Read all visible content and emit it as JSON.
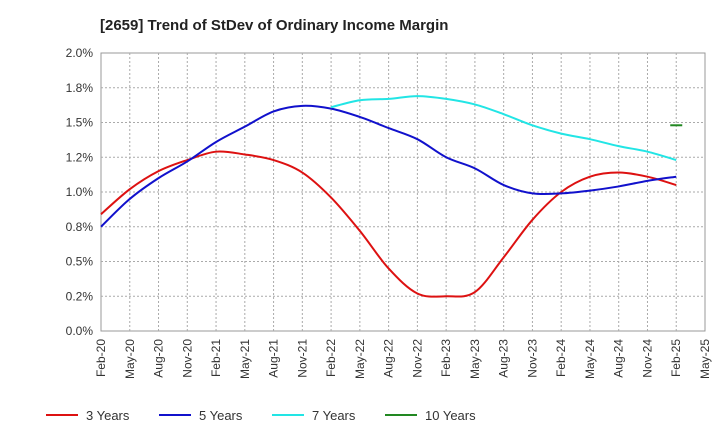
{
  "chart_data": {
    "type": "line",
    "title": "[2659]  Trend of StDev of Ordinary Income Margin",
    "xlabel": "",
    "ylabel": "",
    "ylim": [
      0,
      2.0
    ],
    "y_ticks": [
      {
        "value": 0.0,
        "label": "0.0%"
      },
      {
        "value": 0.25,
        "label": "0.2%"
      },
      {
        "value": 0.5,
        "label": "0.5%"
      },
      {
        "value": 0.75,
        "label": "0.8%"
      },
      {
        "value": 1.0,
        "label": "1.0%"
      },
      {
        "value": 1.25,
        "label": "1.2%"
      },
      {
        "value": 1.5,
        "label": "1.5%"
      },
      {
        "value": 1.75,
        "label": "1.8%"
      },
      {
        "value": 2.0,
        "label": "2.0%"
      }
    ],
    "x_ticks": [
      "Feb-20",
      "May-20",
      "Aug-20",
      "Nov-20",
      "Feb-21",
      "May-21",
      "Aug-21",
      "Nov-21",
      "Feb-22",
      "May-22",
      "Aug-22",
      "Nov-22",
      "Feb-23",
      "May-23",
      "Aug-23",
      "Nov-23",
      "Feb-24",
      "May-24",
      "Aug-24",
      "Nov-24",
      "Feb-25",
      "May-25"
    ],
    "grid": true,
    "legend_position": "bottom",
    "series": [
      {
        "name": "3 Years",
        "color": "#dd1111",
        "values": [
          0.84,
          1.02,
          1.15,
          1.23,
          1.29,
          1.27,
          1.23,
          1.14,
          0.96,
          0.72,
          0.45,
          0.27,
          0.25,
          0.28,
          0.53,
          0.8,
          1.0,
          1.11,
          1.14,
          1.11,
          1.05
        ]
      },
      {
        "name": "5 Years",
        "color": "#1111cc",
        "values": [
          0.75,
          0.95,
          1.1,
          1.22,
          1.36,
          1.47,
          1.58,
          1.62,
          1.6,
          1.54,
          1.46,
          1.38,
          1.25,
          1.17,
          1.05,
          0.99,
          0.99,
          1.01,
          1.04,
          1.08,
          1.11
        ]
      },
      {
        "name": "7 Years",
        "color": "#22e5e5",
        "values": [
          null,
          null,
          null,
          null,
          null,
          null,
          null,
          null,
          1.61,
          1.66,
          1.67,
          1.69,
          1.67,
          1.63,
          1.56,
          1.48,
          1.42,
          1.38,
          1.33,
          1.29,
          1.23
        ]
      },
      {
        "name": "10 Years",
        "color": "#228822",
        "values": [
          null,
          null,
          null,
          null,
          null,
          null,
          null,
          null,
          null,
          null,
          null,
          null,
          null,
          null,
          null,
          null,
          null,
          null,
          null,
          null,
          1.48
        ]
      }
    ]
  }
}
